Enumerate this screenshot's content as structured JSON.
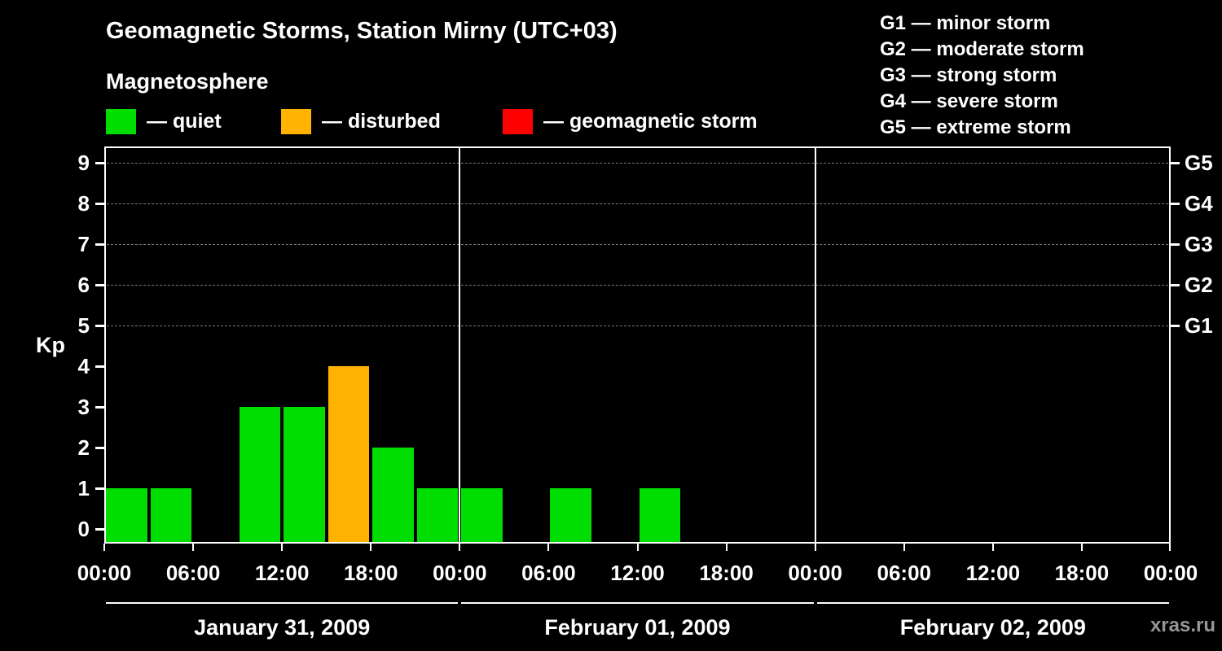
{
  "title": "Geomagnetic Storms, Station Mirny (UTC+03)",
  "subtitle": "Magnetosphere",
  "legend": {
    "items": [
      {
        "name": "quiet",
        "label": "— quiet",
        "color": "#00dd00"
      },
      {
        "name": "disturbed",
        "label": "— disturbed",
        "color": "#ffb300"
      },
      {
        "name": "storm",
        "label": "— geomagnetic storm",
        "color": "#ff0000"
      }
    ]
  },
  "g_scale_legend": [
    "G1 — minor storm",
    "G2 — moderate storm",
    "G3 — strong storm",
    "G4 — severe storm",
    "G5 — extreme storm"
  ],
  "watermark": "xras.ru",
  "chart_data": {
    "type": "bar",
    "title": "Geomagnetic Storms, Station Mirny (UTC+03)",
    "xlabel": "",
    "ylabel": "Kp",
    "ylim": [
      0,
      9
    ],
    "yticks": [
      0,
      1,
      2,
      3,
      4,
      5,
      6,
      7,
      8,
      9
    ],
    "right_axis": [
      {
        "label": "G1",
        "kp": 5
      },
      {
        "label": "G2",
        "kp": 6
      },
      {
        "label": "G3",
        "kp": 7
      },
      {
        "label": "G4",
        "kp": 8
      },
      {
        "label": "G5",
        "kp": 9
      }
    ],
    "gridline_kp_levels": [
      5,
      6,
      7,
      8,
      9
    ],
    "grid": "dashed horizontal at G1-G5 levels only",
    "legend_position": "top-left status colors, top-right G scale",
    "slot_hours": 3,
    "time_ticks": [
      "00:00",
      "06:00",
      "12:00",
      "18:00"
    ],
    "end_tick": "00:00",
    "days": [
      {
        "date": "January 31, 2009",
        "kp_values": [
          1,
          1,
          0,
          3,
          3,
          4,
          2,
          1
        ]
      },
      {
        "date": "February 01, 2009",
        "kp_values": [
          1,
          0,
          1,
          0,
          1,
          0,
          0,
          0
        ]
      },
      {
        "date": "February 02, 2009",
        "kp_values": [
          0,
          0,
          0,
          0,
          0,
          0,
          0,
          0
        ]
      }
    ],
    "status_colors": {
      "quiet": "#00dd00",
      "disturbed": "#ffb300",
      "storm": "#ff0000"
    },
    "color_rule": "kp<=3 quiet, kp==4 disturbed, kp>=5 storm"
  }
}
